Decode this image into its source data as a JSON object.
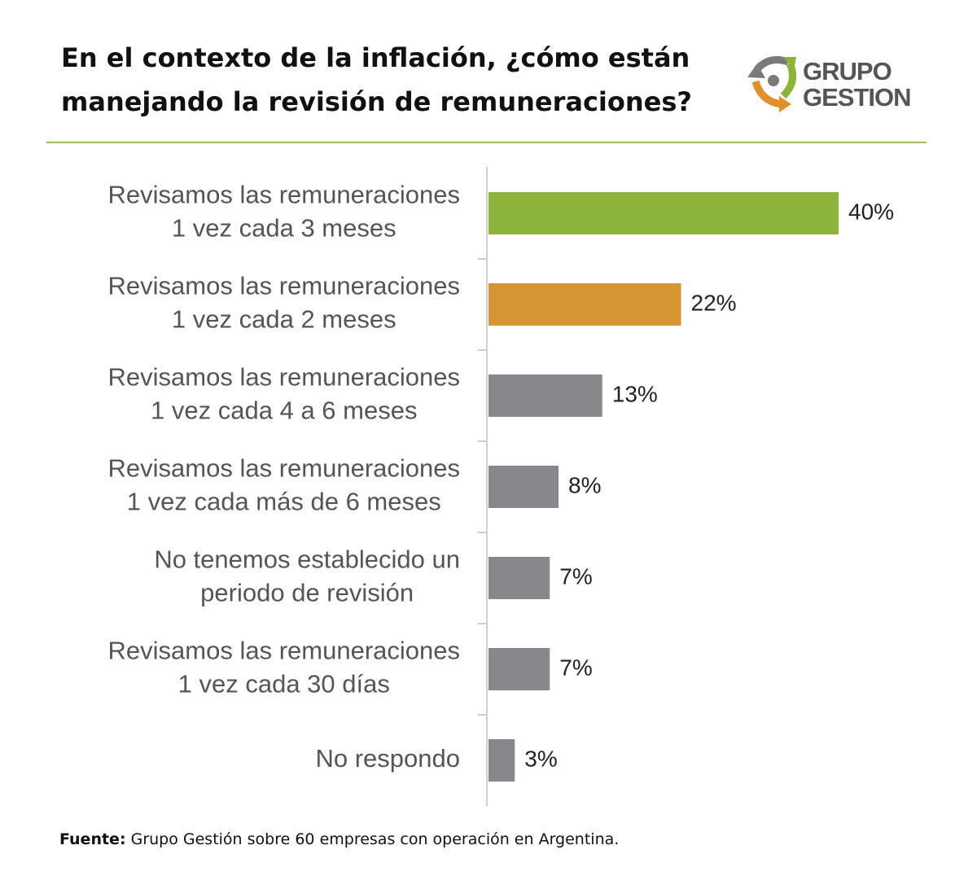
{
  "title": [
    "En el contexto de la inflación, ¿cómo están",
    "manejando la revisión de remuneraciones?"
  ],
  "logo": [
    "GRUPO",
    "GESTION"
  ],
  "source": {
    "label": "Fuente:",
    "text": "Grupo Gestión sobre 60 empresas con operación en Argentina."
  },
  "chart_data": {
    "type": "bar",
    "orientation": "horizontal",
    "categories": [
      [
        "Revisamos las remuneraciones",
        "1 vez cada 3 meses"
      ],
      [
        "Revisamos las remuneraciones",
        "1 vez cada 2 meses"
      ],
      [
        "Revisamos las remuneraciones",
        "1 vez cada 4 a 6 meses"
      ],
      [
        "Revisamos las remuneraciones",
        "1 vez cada más de 6 meses"
      ],
      [
        "No tenemos establecido un",
        "periodo de revisión"
      ],
      [
        "Revisamos las remuneraciones",
        "1 vez cada 30 días"
      ],
      [
        "No respondo"
      ]
    ],
    "values": [
      40,
      22,
      13,
      8,
      7,
      7,
      3
    ],
    "value_labels": [
      "40%",
      "22%",
      "13%",
      "8%",
      "7%",
      "7%",
      "3%"
    ],
    "colors": [
      "#8cb43a",
      "#d69532",
      "#88888c",
      "#88888c",
      "#88888c",
      "#88888c",
      "#88888c"
    ]
  }
}
